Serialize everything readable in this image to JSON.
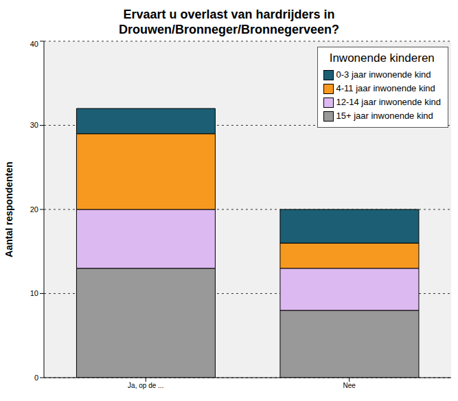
{
  "chart_data": {
    "type": "bar",
    "title": "Ervaart u overlast van hardrijders in Drouwen/Bronneger/Bronnegerveen?",
    "y_label": "Aantal respondenten",
    "legend_title": "Inwonende kinderen",
    "categories": [
      "Ja, op de ...",
      "Nee"
    ],
    "series": [
      {
        "name": "0-3 jaar inwonende kind",
        "color": "#1c5f74",
        "values": [
          3,
          4
        ]
      },
      {
        "name": "4-11 jaar inwonende kind",
        "color": "#f7991f",
        "values": [
          9,
          3
        ]
      },
      {
        "name": "12-14 jaar inwonende kind",
        "color": "#dcb9f0",
        "values": [
          7,
          5
        ]
      },
      {
        "name": "15+ jaar inwonende kind",
        "color": "#999999",
        "values": [
          13,
          8
        ]
      }
    ],
    "ylim": [
      0,
      40
    ],
    "yticks": [
      0,
      10,
      20,
      30,
      40
    ],
    "grid": true,
    "stacked": true,
    "legend": "top-right"
  }
}
